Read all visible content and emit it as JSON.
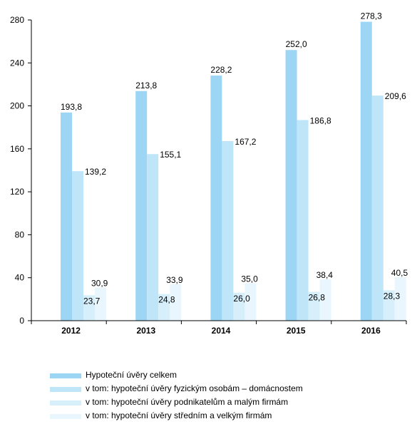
{
  "chart_data": {
    "type": "bar",
    "title": "",
    "xlabel": "",
    "ylabel": "",
    "categories": [
      "2012",
      "2013",
      "2014",
      "2015",
      "2016"
    ],
    "ylim": [
      0,
      280
    ],
    "yticks": [
      "0",
      "40",
      "80",
      "120",
      "160",
      "200",
      "240",
      "280"
    ],
    "grid": false,
    "legend_position": "bottom",
    "series": [
      {
        "name": "Hypoteční úvěry celkem",
        "color": "#9dd6f5",
        "values": [
          193.8,
          213.8,
          228.2,
          252.0,
          278.3
        ],
        "labels": [
          "193,8",
          "213,8",
          "228,2",
          "252,0",
          "278,3"
        ]
      },
      {
        "name": "v tom: hypoteční úvěry fyzickým osobám – domácnostem",
        "color": "#bfe5f8",
        "values": [
          139.2,
          155.1,
          167.2,
          186.8,
          209.6
        ],
        "labels": [
          "139,2",
          "155,1",
          "167,2",
          "186,8",
          "209,6"
        ]
      },
      {
        "name": "v tom: hypoteční úvěry podnikatelům a malým firmám",
        "color": "#d6effb",
        "values": [
          23.7,
          24.8,
          26.0,
          26.8,
          28.3
        ],
        "labels": [
          "23,7",
          "24,8",
          "26,0",
          "26,8",
          "28,3"
        ]
      },
      {
        "name": "v tom: hypoteční úvěry středním a velkým firmám",
        "color": "#e9f6fd",
        "values": [
          30.9,
          33.9,
          35.0,
          38.4,
          40.5
        ],
        "labels": [
          "30,9",
          "33,9",
          "35,0",
          "38,4",
          "40,5"
        ]
      }
    ]
  }
}
